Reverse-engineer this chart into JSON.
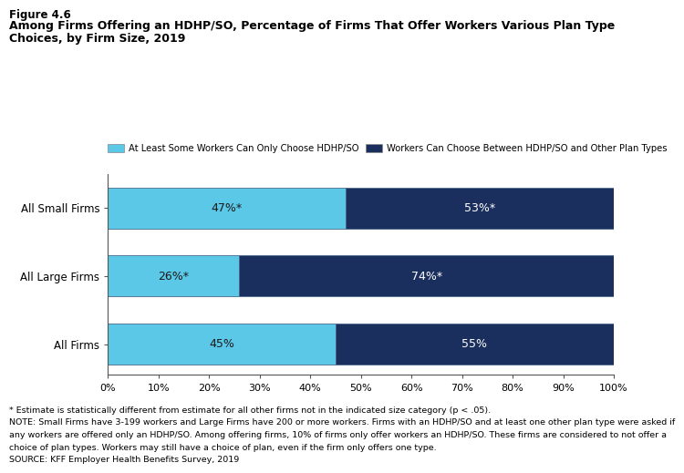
{
  "figure_label": "Figure 4.6",
  "title_line1": "Among Firms Offering an HDHP/SO, Percentage of Firms That Offer Workers Various Plan Type",
  "title_line2": "Choices, by Firm Size, 2019",
  "categories": [
    "All Small Firms",
    "All Large Firms",
    "All Firms"
  ],
  "light_blue_values": [
    47,
    26,
    45
  ],
  "dark_blue_values": [
    53,
    74,
    55
  ],
  "light_blue_labels": [
    "47%*",
    "26%*",
    "45%"
  ],
  "dark_blue_labels": [
    "53%*",
    "74%*",
    "55%"
  ],
  "light_blue_color": "#5bc8e8",
  "dark_blue_color": "#1b2f5e",
  "bar_edge_color": "#3a5a8a",
  "legend_labels": [
    "At Least Some Workers Can Only Choose HDHP/SO",
    "Workers Can Choose Between HDHP/SO and Other Plan Types"
  ],
  "xlabel_ticks": [
    0,
    10,
    20,
    30,
    40,
    50,
    60,
    70,
    80,
    90,
    100
  ],
  "xlabel_tick_labels": [
    "0%",
    "10%",
    "20%",
    "30%",
    "40%",
    "50%",
    "60%",
    "70%",
    "80%",
    "90%",
    "100%"
  ],
  "footnote1": "* Estimate is statistically different from estimate for all other firms not in the indicated size category (p < .05).",
  "footnote2": "NOTE: Small Firms have 3-199 workers and Large Firms have 200 or more workers. Firms with an HDHP/SO and at least one other plan type were asked if",
  "footnote3": "any workers are offered only an HDHP/SO. Among offering firms, 10% of firms only offer workers an HDHP/SO. These firms are considered to not offer a",
  "footnote4": "choice of plan types. Workers may still have a choice of plan, even if the firm only offers one type.",
  "footnote5": "SOURCE: KFF Employer Health Benefits Survey, 2019",
  "background_color": "#ffffff",
  "bar_height": 0.6
}
